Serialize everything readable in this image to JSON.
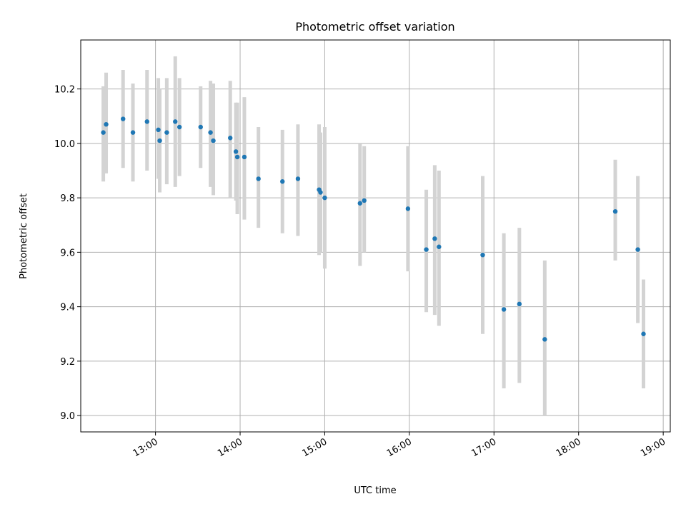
{
  "chart_data": {
    "type": "scatter",
    "title": "Photometric offset variation",
    "xlabel": "UTC time",
    "ylabel": "Photometric offset",
    "grid": true,
    "xlim": [
      "12:07",
      "19:05"
    ],
    "ylim": [
      8.94,
      10.38
    ],
    "xticks": [
      "13:00",
      "14:00",
      "15:00",
      "16:00",
      "17:00",
      "18:00",
      "19:00"
    ],
    "yticks": [
      "9.0",
      "9.2",
      "9.4",
      "9.6",
      "9.8",
      "10.0",
      "10.2"
    ],
    "colors": {
      "points": "#1f77b4",
      "errorbars": "#d3d3d3",
      "grid": "#b0b0b0"
    },
    "points": [
      {
        "x": "12:23",
        "y": 10.04,
        "ylow": 9.86,
        "yhigh": 10.21
      },
      {
        "x": "12:25",
        "y": 10.07,
        "ylow": 9.89,
        "yhigh": 10.26
      },
      {
        "x": "12:37",
        "y": 10.09,
        "ylow": 9.91,
        "yhigh": 10.27
      },
      {
        "x": "12:44",
        "y": 10.04,
        "ylow": 9.86,
        "yhigh": 10.22
      },
      {
        "x": "12:54",
        "y": 10.08,
        "ylow": 9.9,
        "yhigh": 10.27
      },
      {
        "x": "13:02",
        "y": 10.05,
        "ylow": 9.87,
        "yhigh": 10.24
      },
      {
        "x": "13:03",
        "y": 10.01,
        "ylow": 9.82,
        "yhigh": 10.2
      },
      {
        "x": "13:08",
        "y": 10.04,
        "ylow": 9.85,
        "yhigh": 10.24
      },
      {
        "x": "13:14",
        "y": 10.08,
        "ylow": 9.84,
        "yhigh": 10.32
      },
      {
        "x": "13:17",
        "y": 10.06,
        "ylow": 9.88,
        "yhigh": 10.24
      },
      {
        "x": "13:32",
        "y": 10.06,
        "ylow": 9.91,
        "yhigh": 10.21
      },
      {
        "x": "13:39",
        "y": 10.04,
        "ylow": 9.84,
        "yhigh": 10.23
      },
      {
        "x": "13:41",
        "y": 10.01,
        "ylow": 9.81,
        "yhigh": 10.22
      },
      {
        "x": "13:53",
        "y": 10.02,
        "ylow": 9.8,
        "yhigh": 10.23
      },
      {
        "x": "13:57",
        "y": 9.97,
        "ylow": 9.79,
        "yhigh": 10.15
      },
      {
        "x": "13:58",
        "y": 9.95,
        "ylow": 9.74,
        "yhigh": 10.15
      },
      {
        "x": "14:03",
        "y": 9.95,
        "ylow": 9.72,
        "yhigh": 10.17
      },
      {
        "x": "14:13",
        "y": 9.87,
        "ylow": 9.69,
        "yhigh": 10.06
      },
      {
        "x": "14:30",
        "y": 9.86,
        "ylow": 9.67,
        "yhigh": 10.05
      },
      {
        "x": "14:41",
        "y": 9.87,
        "ylow": 9.66,
        "yhigh": 10.07
      },
      {
        "x": "14:56",
        "y": 9.83,
        "ylow": 9.59,
        "yhigh": 10.07
      },
      {
        "x": "14:57",
        "y": 9.82,
        "ylow": 9.6,
        "yhigh": 10.04
      },
      {
        "x": "15:00",
        "y": 9.8,
        "ylow": 9.54,
        "yhigh": 10.06
      },
      {
        "x": "15:25",
        "y": 9.78,
        "ylow": 9.55,
        "yhigh": 10.0
      },
      {
        "x": "15:28",
        "y": 9.79,
        "ylow": 9.6,
        "yhigh": 9.99
      },
      {
        "x": "15:59",
        "y": 9.76,
        "ylow": 9.53,
        "yhigh": 9.99
      },
      {
        "x": "16:12",
        "y": 9.61,
        "ylow": 9.38,
        "yhigh": 9.83
      },
      {
        "x": "16:18",
        "y": 9.65,
        "ylow": 9.37,
        "yhigh": 9.92
      },
      {
        "x": "16:21",
        "y": 9.62,
        "ylow": 9.33,
        "yhigh": 9.9
      },
      {
        "x": "16:52",
        "y": 9.59,
        "ylow": 9.3,
        "yhigh": 9.88
      },
      {
        "x": "17:07",
        "y": 9.39,
        "ylow": 9.1,
        "yhigh": 9.67
      },
      {
        "x": "17:18",
        "y": 9.41,
        "ylow": 9.12,
        "yhigh": 9.69
      },
      {
        "x": "17:36",
        "y": 9.28,
        "ylow": 9.0,
        "yhigh": 9.57
      },
      {
        "x": "18:26",
        "y": 9.75,
        "ylow": 9.57,
        "yhigh": 9.94
      },
      {
        "x": "18:42",
        "y": 9.61,
        "ylow": 9.34,
        "yhigh": 9.88
      },
      {
        "x": "18:46",
        "y": 9.3,
        "ylow": 9.1,
        "yhigh": 9.5
      }
    ]
  }
}
